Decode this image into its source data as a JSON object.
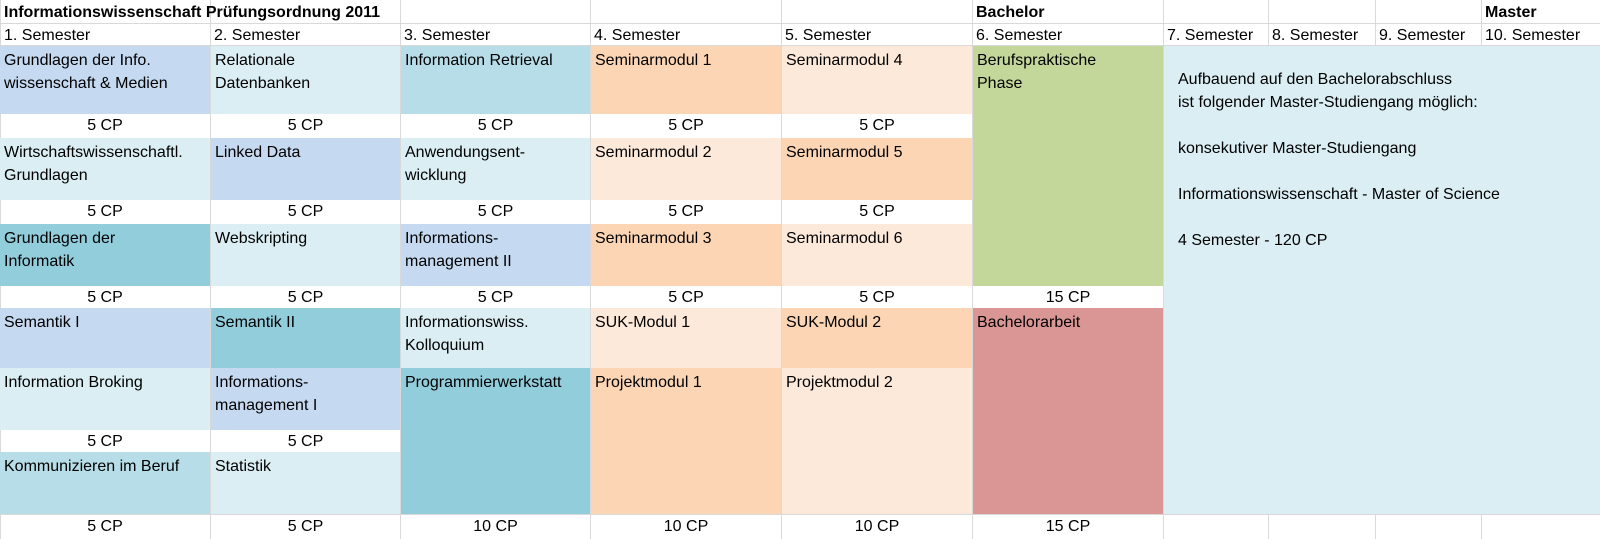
{
  "title": "Informationswissenschaft Prüfungsordnung 2011",
  "bachelor_label": "Bachelor",
  "master_label": "Master",
  "semesters": [
    "1. Semester",
    "2. Semester",
    "3. Semester",
    "4. Semester",
    "5. Semester",
    "6. Semester",
    "7. Semester",
    "8. Semester",
    "9. Semester",
    "10. Semester"
  ],
  "colors": {
    "light_blue": "#daeef3",
    "steel_blue": "#c5d9f1",
    "teal": "#92cddc",
    "light_teal": "#b7dee8",
    "peach": "#fcd5b4",
    "light_peach": "#fde9d9",
    "green": "#c4d79b",
    "red": "#da9694"
  },
  "modules": [
    {
      "name": "Grundlagen der Info.\nwissenschaft & Medien",
      "cp": "5 CP",
      "color": "steel_blue"
    },
    {
      "name": "Relationale\nDatenbanken",
      "cp": "5 CP",
      "color": "light_blue"
    },
    {
      "name": "Information Retrieval",
      "cp": "5 CP",
      "color": "light_teal"
    },
    {
      "name": "Seminarmodul 1",
      "cp": "5 CP",
      "color": "peach"
    },
    {
      "name": "Seminarmodul 4",
      "cp": "5 CP",
      "color": "light_peach"
    },
    {
      "name": "Berufspraktische\nPhase",
      "cp": "15 CP",
      "color": "green"
    },
    {
      "name": "Wirtschaftswissenschaftl.\nGrundlagen",
      "cp": "5 CP",
      "color": "light_blue"
    },
    {
      "name": "Linked Data",
      "cp": "5 CP",
      "color": "steel_blue"
    },
    {
      "name": "Anwendungsent-\nwicklung",
      "cp": "5 CP",
      "color": "light_blue"
    },
    {
      "name": "Seminarmodul 2",
      "cp": "5 CP",
      "color": "light_peach"
    },
    {
      "name": "Seminarmodul 5",
      "cp": "5 CP",
      "color": "peach"
    },
    {
      "name": "Grundlagen der\nInformatik",
      "cp": "5 CP",
      "color": "teal"
    },
    {
      "name": "Webskripting",
      "cp": "5 CP",
      "color": "light_blue"
    },
    {
      "name": "Informations-\nmanagement II",
      "cp": "5 CP",
      "color": "steel_blue"
    },
    {
      "name": "Seminarmodul 3",
      "cp": "5 CP",
      "color": "peach"
    },
    {
      "name": "Seminarmodul 6",
      "cp": "5 CP",
      "color": "light_peach"
    },
    {
      "name": "Semantik I",
      "cp": "",
      "color": "steel_blue"
    },
    {
      "name": "Semantik II",
      "cp": "",
      "color": "teal"
    },
    {
      "name": "Informationswiss.\nKolloquium",
      "cp": "",
      "color": "light_blue"
    },
    {
      "name": "SUK-Modul 1",
      "cp": "",
      "color": "light_peach"
    },
    {
      "name": "SUK-Modul 2",
      "cp": "",
      "color": "peach"
    },
    {
      "name": "Bachelorarbeit",
      "cp": "15 CP",
      "color": "red"
    },
    {
      "name": "Information Broking",
      "cp": "5 CP",
      "color": "light_blue"
    },
    {
      "name": "Informations-\nmanagement I",
      "cp": "5 CP",
      "color": "steel_blue"
    },
    {
      "name": "Programmierwerkstatt",
      "cp": "10 CP",
      "color": "teal"
    },
    {
      "name": "Projektmodul 1",
      "cp": "10 CP",
      "color": "peach"
    },
    {
      "name": "Projektmodul 2",
      "cp": "10 CP",
      "color": "light_peach"
    },
    {
      "name": "Kommunizieren im Beruf",
      "cp": "5 CP",
      "color": "light_teal"
    },
    {
      "name": "Statistik",
      "cp": "5 CP",
      "color": "light_blue"
    }
  ],
  "master_info": {
    "line1": "Aufbauend auf den Bachelorabschluss",
    "line2": "ist folgender Master-Studiengang möglich:",
    "line3": "konsekutiver Master-Studiengang",
    "line4": "Informationswissenschaft - Master of Science",
    "line5": "4 Semester - 120 CP"
  }
}
